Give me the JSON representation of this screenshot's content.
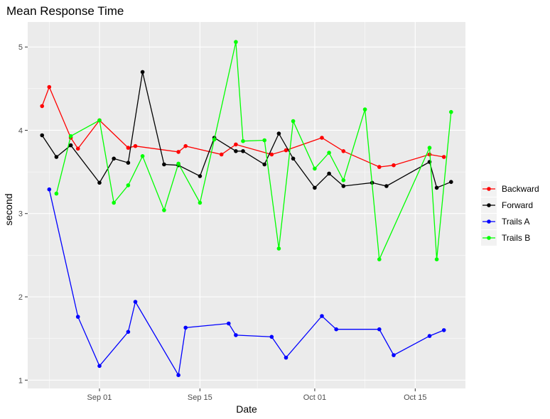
{
  "chart_data": {
    "type": "line",
    "title": "Mean Response Time",
    "xlabel": "Date",
    "ylabel": "second",
    "x_axis": "date",
    "xlim": [
      "2018-08-22",
      "2018-10-22"
    ],
    "ylim": [
      0.9,
      5.3
    ],
    "x_ticks": [
      {
        "date": "2018-09-01",
        "label": "Sep 01"
      },
      {
        "date": "2018-09-15",
        "label": "Sep 15"
      },
      {
        "date": "2018-10-01",
        "label": "Oct 01"
      },
      {
        "date": "2018-10-15",
        "label": "Oct 15"
      }
    ],
    "y_ticks": [
      1,
      2,
      3,
      4,
      5
    ],
    "grid": true,
    "legend_position": "right",
    "series": [
      {
        "name": "Backward",
        "color": "#ff0000",
        "points": [
          [
            "2018-08-24",
            4.29
          ],
          [
            "2018-08-25",
            4.52
          ],
          [
            "2018-08-28",
            3.91
          ],
          [
            "2018-08-29",
            3.78
          ],
          [
            "2018-09-01",
            4.12
          ],
          [
            "2018-09-05",
            3.79
          ],
          [
            "2018-09-06",
            3.81
          ],
          [
            "2018-09-12",
            3.74
          ],
          [
            "2018-09-13",
            3.81
          ],
          [
            "2018-09-18",
            3.71
          ],
          [
            "2018-09-20",
            3.83
          ],
          [
            "2018-09-25",
            3.71
          ],
          [
            "2018-09-27",
            3.76
          ],
          [
            "2018-10-02",
            3.91
          ],
          [
            "2018-10-05",
            3.75
          ],
          [
            "2018-10-10",
            3.56
          ],
          [
            "2018-10-12",
            3.58
          ],
          [
            "2018-10-17",
            3.71
          ],
          [
            "2018-10-19",
            3.68
          ]
        ]
      },
      {
        "name": "Forward",
        "color": "#000000",
        "points": [
          [
            "2018-08-24",
            3.94
          ],
          [
            "2018-08-26",
            3.68
          ],
          [
            "2018-08-28",
            3.82
          ],
          [
            "2018-09-01",
            3.37
          ],
          [
            "2018-09-03",
            3.66
          ],
          [
            "2018-09-05",
            3.61
          ],
          [
            "2018-09-07",
            4.7
          ],
          [
            "2018-09-10",
            3.59
          ],
          [
            "2018-09-12",
            3.58
          ],
          [
            "2018-09-15",
            3.45
          ],
          [
            "2018-09-17",
            3.91
          ],
          [
            "2018-09-20",
            3.75
          ],
          [
            "2018-09-21",
            3.75
          ],
          [
            "2018-09-24",
            3.59
          ],
          [
            "2018-09-26",
            3.96
          ],
          [
            "2018-09-28",
            3.66
          ],
          [
            "2018-10-01",
            3.31
          ],
          [
            "2018-10-03",
            3.48
          ],
          [
            "2018-10-05",
            3.33
          ],
          [
            "2018-10-09",
            3.37
          ],
          [
            "2018-10-11",
            3.33
          ],
          [
            "2018-10-17",
            3.62
          ],
          [
            "2018-10-18",
            3.31
          ],
          [
            "2018-10-20",
            3.38
          ]
        ]
      },
      {
        "name": "Trails A",
        "color": "#0000ff",
        "points": [
          [
            "2018-08-25",
            3.29
          ],
          [
            "2018-08-29",
            1.76
          ],
          [
            "2018-09-01",
            1.17
          ],
          [
            "2018-09-05",
            1.58
          ],
          [
            "2018-09-06",
            1.94
          ],
          [
            "2018-09-12",
            1.06
          ],
          [
            "2018-09-13",
            1.63
          ],
          [
            "2018-09-19",
            1.68
          ],
          [
            "2018-09-20",
            1.54
          ],
          [
            "2018-09-25",
            1.52
          ],
          [
            "2018-09-27",
            1.27
          ],
          [
            "2018-10-02",
            1.77
          ],
          [
            "2018-10-04",
            1.61
          ],
          [
            "2018-10-10",
            1.61
          ],
          [
            "2018-10-12",
            1.3
          ],
          [
            "2018-10-17",
            1.53
          ],
          [
            "2018-10-19",
            1.6
          ]
        ]
      },
      {
        "name": "Trails B",
        "color": "#00ff00",
        "points": [
          [
            "2018-08-26",
            3.24
          ],
          [
            "2018-08-28",
            3.93
          ],
          [
            "2018-09-01",
            4.12
          ],
          [
            "2018-09-03",
            3.13
          ],
          [
            "2018-09-05",
            3.34
          ],
          [
            "2018-09-07",
            3.69
          ],
          [
            "2018-09-10",
            3.04
          ],
          [
            "2018-09-12",
            3.6
          ],
          [
            "2018-09-15",
            3.13
          ],
          [
            "2018-09-17",
            3.89
          ],
          [
            "2018-09-20",
            5.06
          ],
          [
            "2018-09-21",
            3.87
          ],
          [
            "2018-09-24",
            3.88
          ],
          [
            "2018-09-26",
            2.58
          ],
          [
            "2018-09-28",
            4.11
          ],
          [
            "2018-10-01",
            3.54
          ],
          [
            "2018-10-03",
            3.73
          ],
          [
            "2018-10-05",
            3.4
          ],
          [
            "2018-10-08",
            4.25
          ],
          [
            "2018-10-10",
            2.45
          ],
          [
            "2018-10-17",
            3.79
          ],
          [
            "2018-10-18",
            2.45
          ],
          [
            "2018-10-20",
            4.22
          ]
        ]
      }
    ]
  }
}
